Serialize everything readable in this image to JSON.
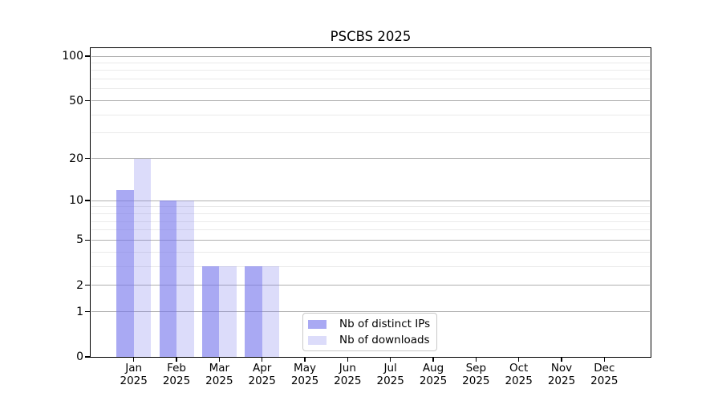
{
  "chart_data": {
    "type": "bar",
    "title": "PSCBS 2025",
    "categories": [
      "Jan 2025",
      "Feb 2025",
      "Mar 2025",
      "Apr 2025",
      "May 2025",
      "Jun 2025",
      "Jul 2025",
      "Aug 2025",
      "Sep 2025",
      "Oct 2025",
      "Nov 2025",
      "Dec 2025"
    ],
    "x_tick_labels": [
      [
        "Jan",
        "2025"
      ],
      [
        "Feb",
        "2025"
      ],
      [
        "Mar",
        "2025"
      ],
      [
        "Apr",
        "2025"
      ],
      [
        "May",
        "2025"
      ],
      [
        "Jun",
        "2025"
      ],
      [
        "Jul",
        "2025"
      ],
      [
        "Aug",
        "2025"
      ],
      [
        "Sep",
        "2025"
      ],
      [
        "Oct",
        "2025"
      ],
      [
        "Nov",
        "2025"
      ],
      [
        "Dec",
        "2025"
      ]
    ],
    "series": [
      {
        "name": "Nb of distinct IPs",
        "values": [
          12,
          10,
          3,
          3,
          0,
          0,
          0,
          0,
          0,
          0,
          0,
          0
        ],
        "color": "#7474eb",
        "alpha": 0.62
      },
      {
        "name": "Nb of downloads",
        "values": [
          20,
          10,
          3,
          3,
          0,
          0,
          0,
          0,
          0,
          0,
          0,
          0
        ],
        "color": "#7474eb",
        "alpha": 0.25
      }
    ],
    "y_scale": "log1p",
    "y_ticks": [
      0,
      1,
      2,
      5,
      10,
      20,
      50,
      100
    ],
    "y_minor_gridlines": [
      3,
      4,
      6,
      7,
      8,
      9,
      30,
      40,
      60,
      70,
      80,
      90
    ],
    "ylim": [
      0,
      115
    ],
    "xlabel": "",
    "ylabel": "",
    "grid": true,
    "legend_position": "lower center",
    "colors": {
      "major_grid": "#b0b0b0",
      "minor_grid": "#eaeaea",
      "spine": "#000000",
      "text": "#000000",
      "background": "#ffffff",
      "legend_border": "#c9c9c9"
    }
  }
}
